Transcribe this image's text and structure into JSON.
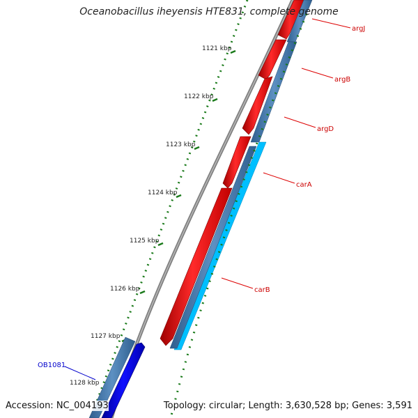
{
  "title": "Oceanobacillus iheyensis HTE831, complete genome",
  "footer": {
    "accession": "Accession: NC_004193",
    "stats": "Topology: circular; Length: 3,630,528 bp; Genes: 3,591"
  },
  "ruler": [
    {
      "label": "1121 kbp"
    },
    {
      "label": "1122 kbp"
    },
    {
      "label": "1123 kbp"
    },
    {
      "label": "1124 kbp"
    },
    {
      "label": "1125 kbp"
    },
    {
      "label": "1126 kbp"
    },
    {
      "label": "1127 kbp"
    },
    {
      "label": "1128 kbp"
    }
  ],
  "genes": [
    {
      "name": "argJ",
      "label_color": "#cc0000"
    },
    {
      "name": "argB",
      "label_color": "#cc0000"
    },
    {
      "name": "argD",
      "label_color": "#cc0000"
    },
    {
      "name": "carA",
      "label_color": "#cc0000"
    },
    {
      "name": "carB",
      "label_color": "#cc0000"
    },
    {
      "name": "OB1081",
      "label_color": "#0000cc"
    }
  ],
  "colors": {
    "forward_gene": "#ff0000",
    "reverse_gene": "#0000ff",
    "cds_track": "#4a7fb0",
    "rna_track": "#00bfff",
    "backbone": "#808080",
    "ticks": "#1a7a1a",
    "label_line_red": "#dd0000",
    "label_line_blue": "#0000cc"
  }
}
